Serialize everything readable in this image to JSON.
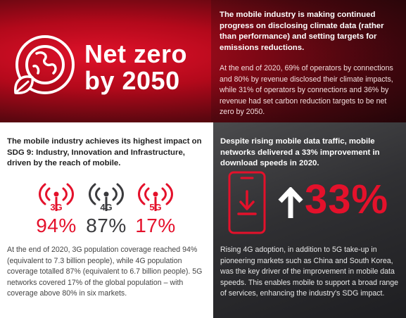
{
  "colors": {
    "brand_red": "#e4112b",
    "dark_gray": "#3a3a3d",
    "text_gray": "#444444"
  },
  "hero": {
    "title": "Net zero\nby 2050",
    "icon": "globe-leaf-icon"
  },
  "top_panel": {
    "lead": "The mobile industry is making continued progress on disclosing climate data (rather than performance) and setting targets for emissions reductions.",
    "body": "At the end of 2020, 69% of operators by connections and 80% by revenue disclosed their climate impacts, while 31% of operators by connections and 36% by revenue had set carbon reduction targets to be net zero by 2050."
  },
  "left_panel": {
    "lead": "The mobile industry achieves its highest impact on SDG 9: Industry, Innovation and Infrastructure, driven by the reach of mobile.",
    "networks": [
      {
        "label": "3G",
        "percent": "94%",
        "color": "#e4112b",
        "icon": "signal-tower-icon"
      },
      {
        "label": "4G",
        "percent": "87%",
        "color": "#3a3a3d",
        "icon": "signal-tower-icon"
      },
      {
        "label": "5G",
        "percent": "17%",
        "color": "#e4112b",
        "icon": "signal-tower-icon"
      }
    ],
    "body": "At the end of 2020, 3G population coverage reached 94% (equivalent to 7.3 billion people), while 4G population coverage totalled 87% (equivalent to 6.7 billion people). 5G networks covered 17% of the global population – with coverage above 80% in six markets."
  },
  "right_panel": {
    "lead": "Despite rising mobile data traffic, mobile networks delivered a 33% improvement in download speeds in 2020.",
    "stat": "33%",
    "phone_icon": "phone-download-icon",
    "arrow_icon": "up-arrow-icon",
    "body": "Rising 4G adoption, in addition to 5G take-up in pioneering markets such as China and South Korea, was the key driver of the improvement in mobile data speeds. This enables mobile to support a broad range of services, enhancing the industry's SDG impact."
  }
}
